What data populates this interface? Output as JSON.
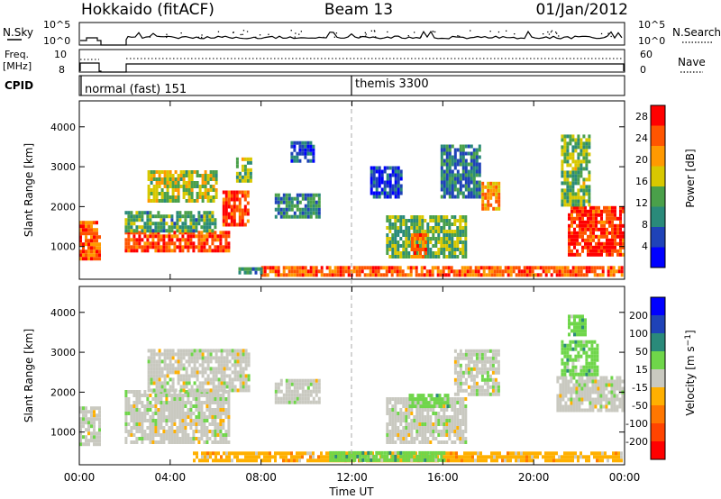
{
  "header": {
    "station": "Hokkaido (fitACF)",
    "beam": "Beam 13",
    "date": "01/Jan/2012"
  },
  "sky_panel": {
    "left_label": "N.Sky",
    "left_ticks": [
      "10^5",
      "10^0"
    ],
    "right_ticks": [
      "10^5",
      "10^0"
    ],
    "right_label": "N.Search"
  },
  "freq_panel": {
    "left_label_1": "Freq.",
    "left_label_2": "[MHz]",
    "left_ticks": [
      "10",
      "8"
    ],
    "right_ticks": [
      "60",
      "0"
    ],
    "right_label": "Nave"
  },
  "cpid_panel": {
    "label": "CPID",
    "modes": [
      "normal (fast) 151",
      "themis 3300"
    ]
  },
  "x_axis": {
    "title": "Time UT",
    "ticks": [
      "00:00",
      "04:00",
      "08:00",
      "12:00",
      "16:00",
      "20:00",
      "00:00"
    ]
  },
  "colors": {
    "white": "#ffffff",
    "dashed_line": "#aaaaaa"
  },
  "chart_data": [
    {
      "type": "heatmap",
      "title": "",
      "ylabel": "Slant Range [km]",
      "xlabel": "",
      "xlim": [
        0,
        24
      ],
      "ylim": [
        180,
        4650
      ],
      "yticks": [
        1000,
        2000,
        3000,
        4000
      ],
      "colorbar": {
        "label": "Power [dB]",
        "ticks": [
          4,
          8,
          12,
          16,
          20,
          24,
          28
        ],
        "range": [
          0,
          30
        ],
        "colors": [
          "#0000ff",
          "#1f43b8",
          "#2a8a7a",
          "#4aa04a",
          "#d8c800",
          "#ff9900",
          "#ff5500",
          "#ff0000"
        ]
      },
      "regions": [
        {
          "t": [
            0.0,
            0.9
          ],
          "r": [
            650,
            1600
          ],
          "v": 24
        },
        {
          "t": [
            2.0,
            6.6
          ],
          "r": [
            850,
            1350
          ],
          "v": 25
        },
        {
          "t": [
            2.0,
            6.0
          ],
          "r": [
            1350,
            1850
          ],
          "v": 12
        },
        {
          "t": [
            3.0,
            6.0
          ],
          "r": [
            2100,
            2900
          ],
          "v": 16
        },
        {
          "t": [
            6.3,
            7.4
          ],
          "r": [
            1500,
            2400
          ],
          "v": 26
        },
        {
          "t": [
            6.9,
            7.5
          ],
          "r": [
            2600,
            3200
          ],
          "v": 14
        },
        {
          "t": [
            8.6,
            10.6
          ],
          "r": [
            1700,
            2300
          ],
          "v": 10
        },
        {
          "t": [
            9.3,
            10.3
          ],
          "r": [
            3100,
            3600
          ],
          "v": 6
        },
        {
          "t": [
            12.8,
            14.2
          ],
          "r": [
            2200,
            3000
          ],
          "v": 5
        },
        {
          "t": [
            13.5,
            17.0
          ],
          "r": [
            700,
            1700
          ],
          "v": 13
        },
        {
          "t": [
            14.6,
            15.2
          ],
          "r": [
            700,
            1300
          ],
          "v": 25
        },
        {
          "t": [
            15.9,
            17.6
          ],
          "r": [
            2200,
            3500
          ],
          "v": 9
        },
        {
          "t": [
            17.7,
            18.5
          ],
          "r": [
            1900,
            2600
          ],
          "v": 21
        },
        {
          "t": [
            21.5,
            23.9
          ],
          "r": [
            750,
            2000
          ],
          "v": 27
        },
        {
          "t": [
            21.2,
            22.4
          ],
          "r": [
            2000,
            3800
          ],
          "v": 14
        },
        {
          "t": [
            8.0,
            23.9
          ],
          "r": [
            240,
            480
          ],
          "v": 24
        },
        {
          "t": [
            7.0,
            8.0
          ],
          "r": [
            300,
            450
          ],
          "v": 10
        }
      ]
    },
    {
      "type": "heatmap",
      "title": "",
      "ylabel": "Slant Range [km]",
      "xlabel": "Time UT",
      "xlim": [
        0,
        24
      ],
      "ylim": [
        180,
        4650
      ],
      "yticks": [
        1000,
        2000,
        3000,
        4000
      ],
      "colorbar": {
        "label": "Velocity [m s^-1]",
        "ticks": [
          "200",
          "100",
          "50",
          "15",
          "-15",
          "-50",
          "-100",
          "-200"
        ],
        "colors": [
          "#0000ff",
          "#1f43b8",
          "#2a8a7a",
          "#6fd64a",
          "#c9c9c0",
          "#ffb000",
          "#ff7700",
          "#ff4400",
          "#ff0000"
        ]
      },
      "regions": [
        {
          "t": [
            0.0,
            0.9
          ],
          "r": [
            650,
            1600
          ],
          "c": 4
        },
        {
          "t": [
            2.0,
            6.6
          ],
          "r": [
            700,
            2000
          ],
          "c": 4
        },
        {
          "t": [
            3.0,
            7.5
          ],
          "r": [
            2000,
            3000
          ],
          "c": 4
        },
        {
          "t": [
            8.6,
            10.6
          ],
          "r": [
            1700,
            2300
          ],
          "c": 4
        },
        {
          "t": [
            13.5,
            17.0
          ],
          "r": [
            700,
            1800
          ],
          "c": 4
        },
        {
          "t": [
            14.5,
            16.2
          ],
          "r": [
            1600,
            1900
          ],
          "c": 3
        },
        {
          "t": [
            16.5,
            18.5
          ],
          "r": [
            1900,
            3000
          ],
          "c": 4
        },
        {
          "t": [
            21.0,
            23.9
          ],
          "r": [
            1500,
            2400
          ],
          "c": 4
        },
        {
          "t": [
            21.2,
            22.8
          ],
          "r": [
            2400,
            3300
          ],
          "c": 3
        },
        {
          "t": [
            21.5,
            22.3
          ],
          "r": [
            3400,
            3900
          ],
          "c": 3
        },
        {
          "t": [
            5.0,
            23.9
          ],
          "r": [
            240,
            480
          ],
          "c": 5
        },
        {
          "t": [
            11.0,
            16.0
          ],
          "r": [
            250,
            500
          ],
          "c": 3
        }
      ]
    }
  ]
}
